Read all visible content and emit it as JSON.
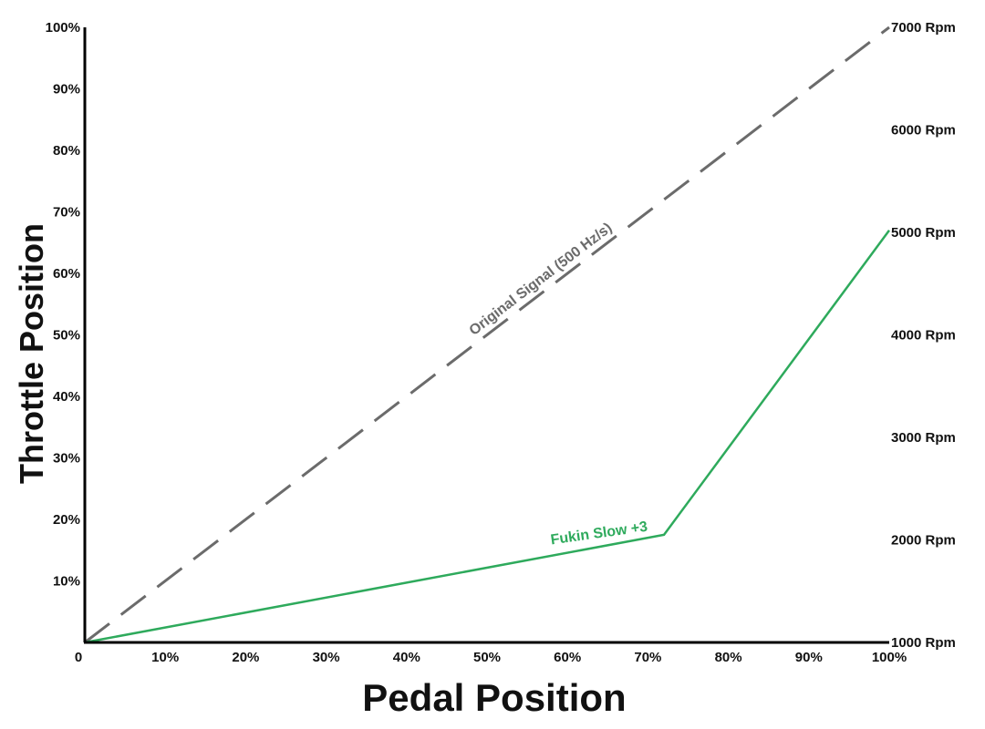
{
  "chart_data": {
    "type": "line",
    "xlabel": "Pedal Position",
    "ylabel": "Throttle Position",
    "x_ticks": [
      "0",
      "10%",
      "20%",
      "30%",
      "40%",
      "50%",
      "60%",
      "70%",
      "80%",
      "90%",
      "100%"
    ],
    "y_ticks": [
      "10%",
      "20%",
      "30%",
      "40%",
      "50%",
      "60%",
      "70%",
      "80%",
      "90%",
      "100%"
    ],
    "y2_ticks": [
      "1000 Rpm",
      "2000 Rpm",
      "3000 Rpm",
      "4000 Rpm",
      "5000 Rpm",
      "6000 Rpm",
      "7000 Rpm"
    ],
    "xlim": [
      0,
      100
    ],
    "ylim": [
      0,
      100
    ],
    "y2lim": [
      1000,
      7000
    ],
    "grid": false,
    "series": [
      {
        "name": "Original Signal (500 Hz/s)",
        "style": "dashed",
        "color": "#6b6b6b",
        "points": [
          [
            0,
            0
          ],
          [
            100,
            100
          ]
        ]
      },
      {
        "name": "Fukin Slow +3",
        "style": "solid",
        "color": "#2eaa5c",
        "points": [
          [
            0,
            0
          ],
          [
            72,
            17.5
          ],
          [
            100,
            67
          ]
        ]
      }
    ]
  }
}
